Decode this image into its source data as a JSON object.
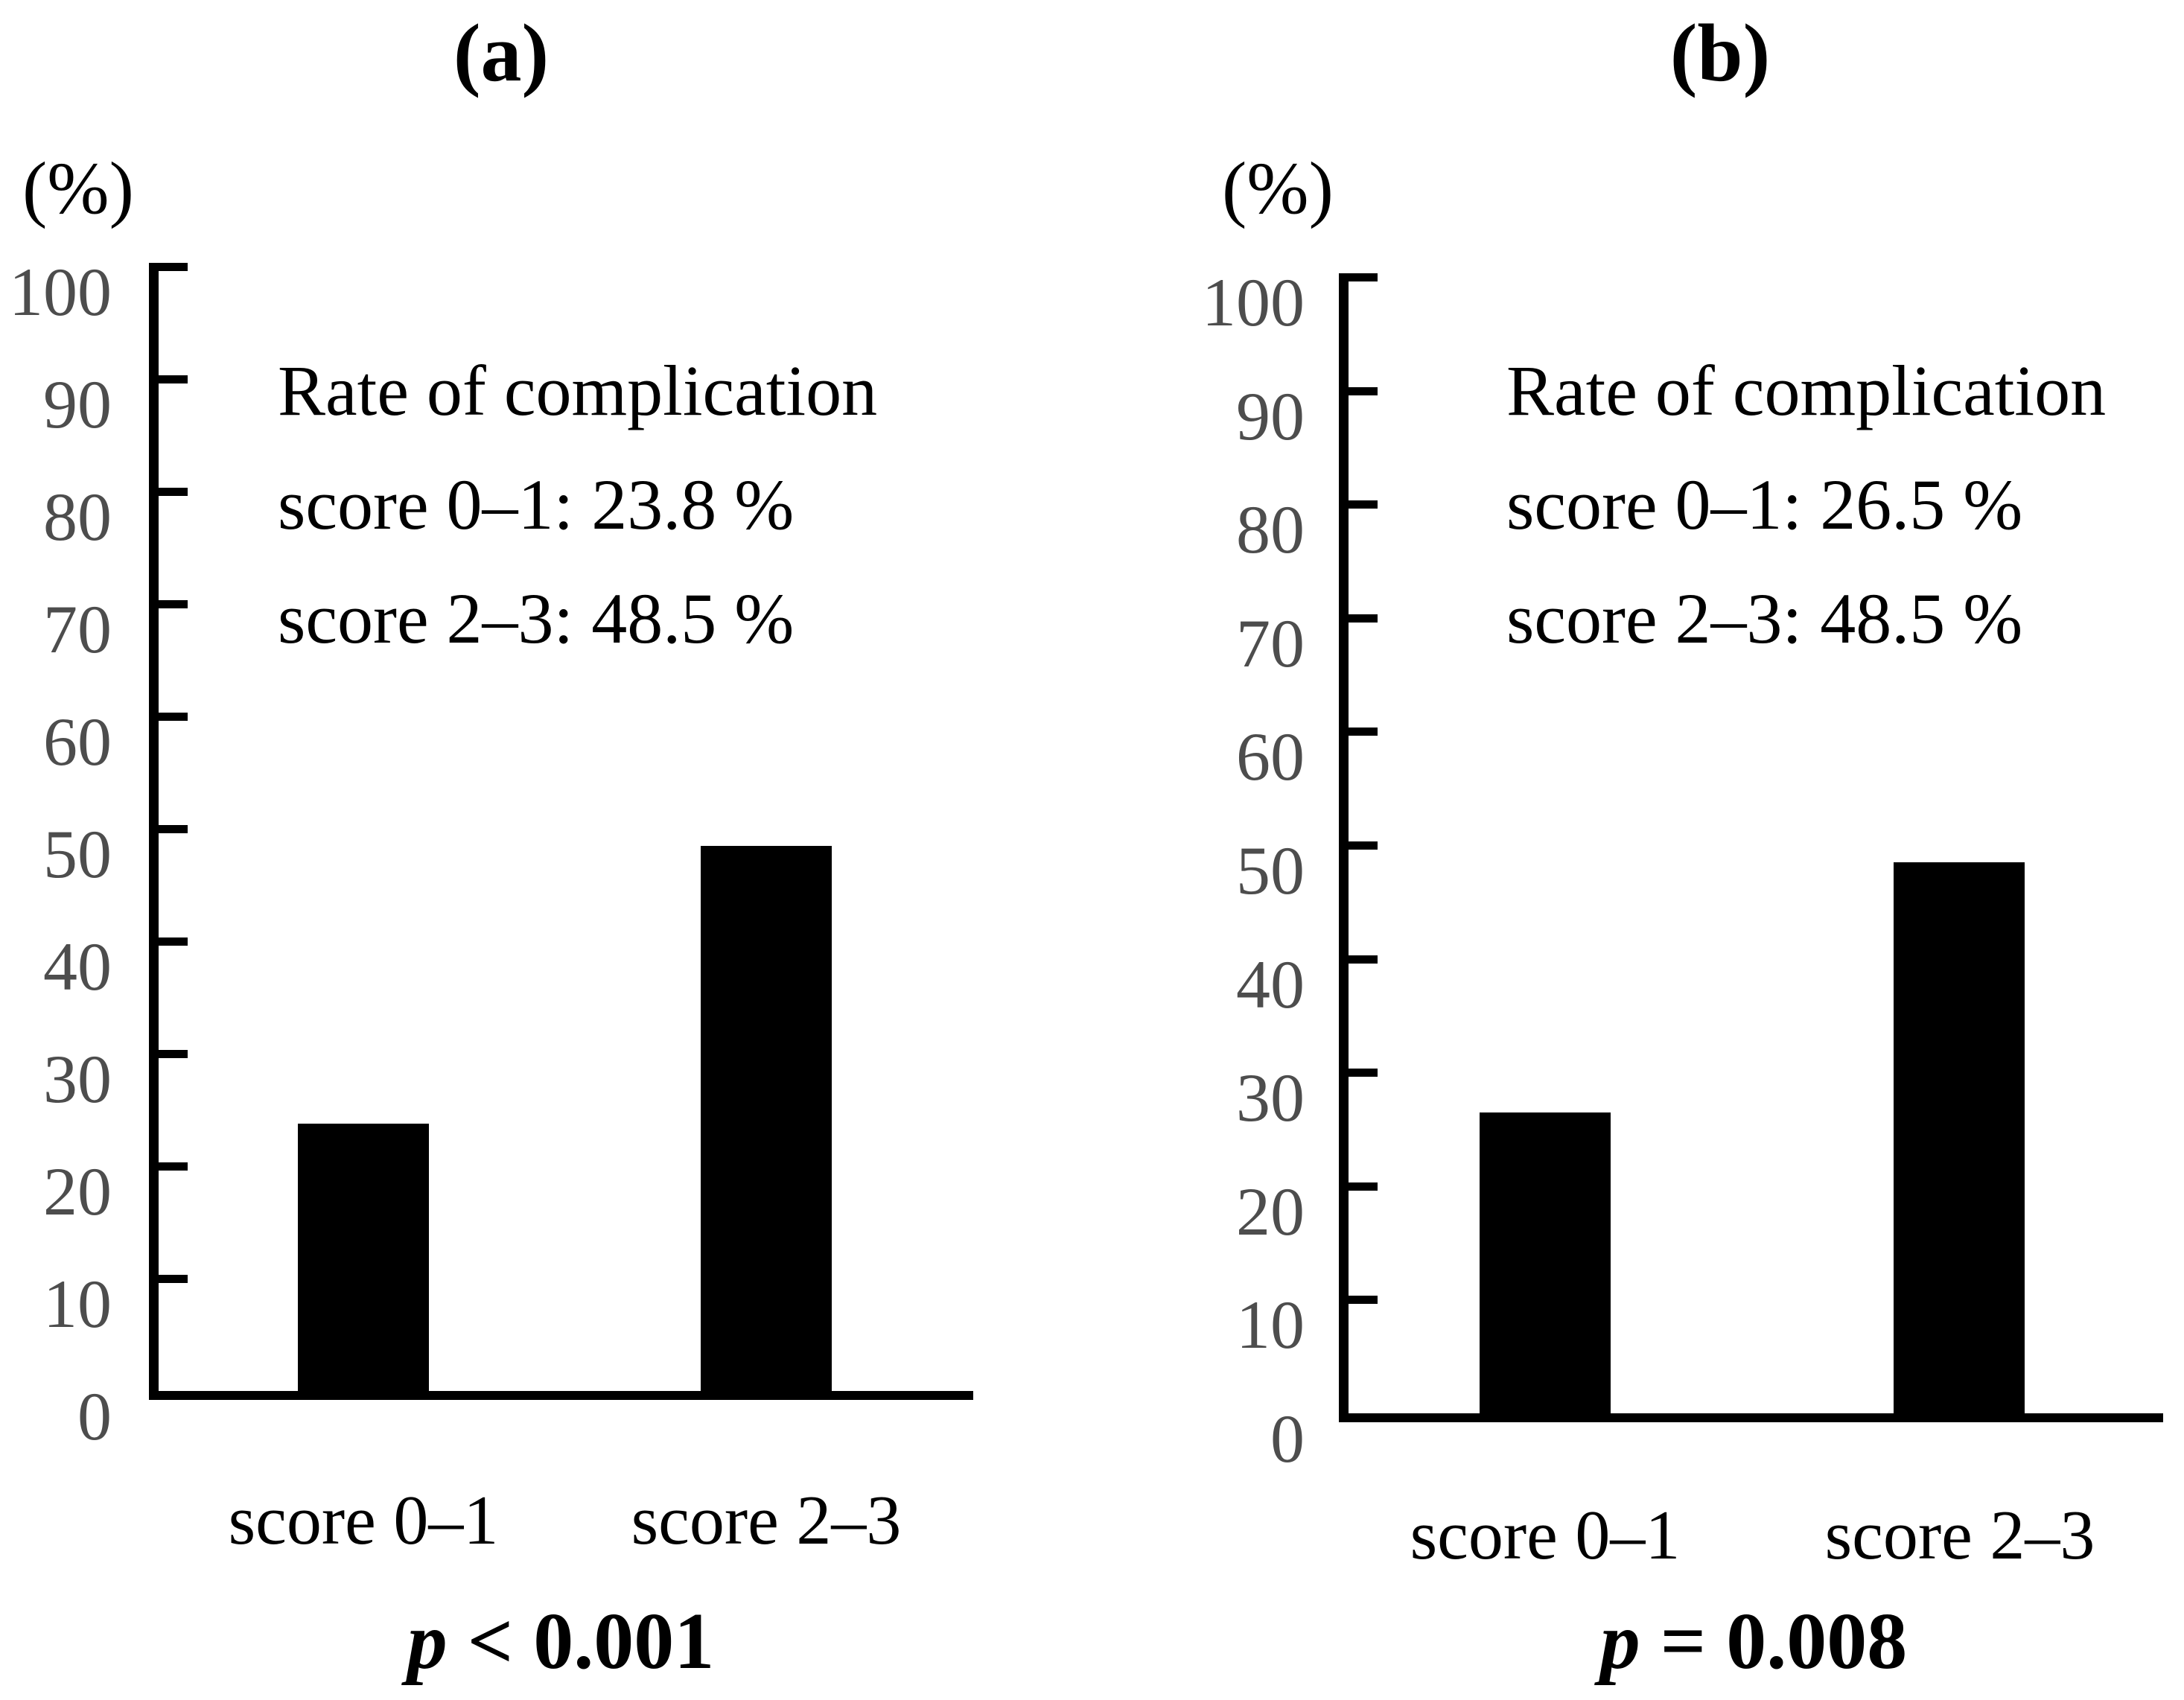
{
  "chart_data": [
    {
      "type": "bar",
      "panel": "(a)",
      "ylabel": "(%)",
      "ylim": [
        0,
        100
      ],
      "y_ticks": [
        0,
        10,
        20,
        30,
        40,
        50,
        60,
        70,
        80,
        90,
        100
      ],
      "categories": [
        "score 0–1",
        "score 2–3"
      ],
      "values": [
        23.8,
        48.5
      ],
      "annotation": [
        "Rate of complication",
        "score 0–1: 23.8 %",
        "score 2–3: 48.5 %"
      ],
      "p_value": "p < 0.001",
      "p_symbol": "p",
      "p_rest": " < 0.001",
      "bar_color": "#000000",
      "axis_color": "#000000",
      "tick_label_color": "#4d4d4d",
      "legend": "none",
      "grid": "off"
    },
    {
      "type": "bar",
      "panel": "(b)",
      "ylabel": "(%)",
      "ylim": [
        0,
        100
      ],
      "y_ticks": [
        0,
        10,
        20,
        30,
        40,
        50,
        60,
        70,
        80,
        90,
        100
      ],
      "categories": [
        "score 0–1",
        "score 2–3"
      ],
      "values": [
        26.5,
        48.5
      ],
      "annotation": [
        "Rate of complication",
        "score 0–1: 26.5 %",
        "score 2–3: 48.5 %"
      ],
      "p_value": "p = 0.008",
      "p_symbol": "p",
      "p_rest": " = 0.008",
      "bar_color": "#000000",
      "axis_color": "#000000",
      "tick_label_color": "#4d4d4d",
      "legend": "none",
      "grid": "off"
    }
  ]
}
